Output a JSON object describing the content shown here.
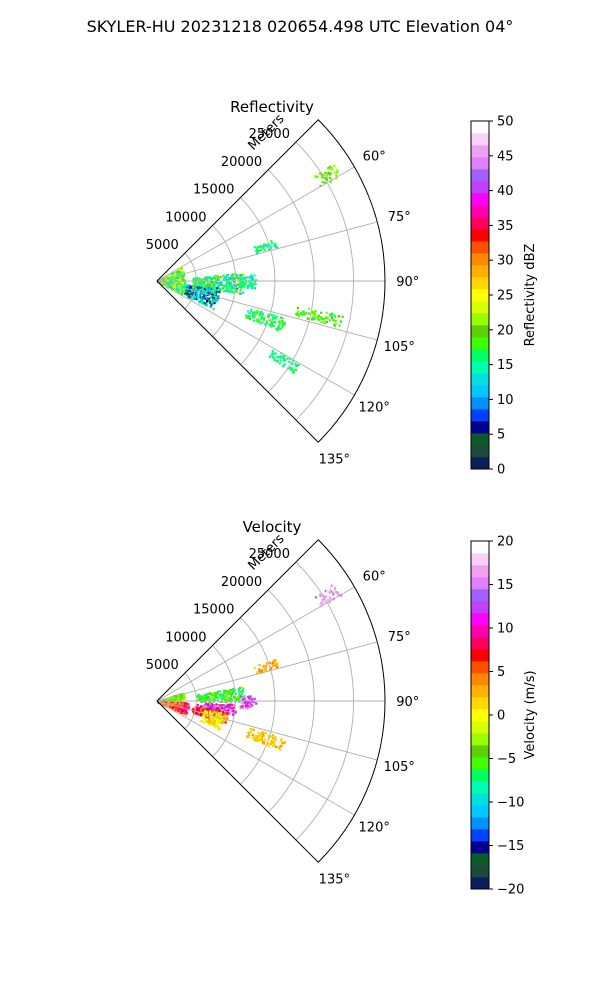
{
  "figure": {
    "suptitle": "SKYLER-HU  20231218  020654.498 UTC Elevation 04°"
  },
  "chart_data": [
    {
      "type": "polar-sector",
      "title": "Reflectivity",
      "radial_label": "Meters",
      "theta_range_deg": [
        45,
        135
      ],
      "theta_ticks_deg": [
        60,
        75,
        90,
        105,
        120,
        135
      ],
      "theta_tick_labels": [
        "60°",
        "75°",
        "90°",
        "105°",
        "120°",
        "135°"
      ],
      "r_range": [
        0,
        29000
      ],
      "r_ticks": [
        5000,
        10000,
        15000,
        20000,
        25000
      ],
      "r_tick_labels": [
        "5000",
        "10000",
        "15000",
        "20000",
        "25000"
      ],
      "grid": true,
      "colorbar": {
        "label": "Reflectivity dBZ",
        "range": [
          0,
          50
        ],
        "ticks": [
          0,
          5,
          10,
          15,
          20,
          25,
          30,
          35,
          40,
          45,
          50
        ],
        "tick_labels": [
          "0",
          "5",
          "10",
          "15",
          "20",
          "25",
          "30",
          "35",
          "40",
          "45",
          "50"
        ],
        "colors": [
          "#0a1e5a",
          "#1b4a3a",
          "#0b5a2a",
          "#000090",
          "#0040ff",
          "#0090ff",
          "#00c8ff",
          "#00e0e0",
          "#00ffb0",
          "#00ff60",
          "#40ff00",
          "#5fd000",
          "#99ff00",
          "#d8ff00",
          "#ffff00",
          "#ffd800",
          "#ffb000",
          "#ff8800",
          "#ff5000",
          "#ff0000",
          "#ff0060",
          "#ff00b0",
          "#ff00ff",
          "#c040ff",
          "#a060ff",
          "#e080ff",
          "#f0a0f0",
          "#f8d0f8",
          "#ffffff"
        ]
      },
      "echo_clusters": [
        {
          "az": [
            84,
            98
          ],
          "r": [
            4500,
            11000
          ],
          "values": [
            10,
            22
          ]
        },
        {
          "az": [
            96,
            116
          ],
          "r": [
            2000,
            8000
          ],
          "values": [
            3,
            18
          ]
        },
        {
          "az": [
            60,
            118
          ],
          "r": [
            0,
            3500
          ],
          "values": [
            12,
            26
          ]
        },
        {
          "az": [
            86,
            94
          ],
          "r": [
            10500,
            12500
          ],
          "values": [
            12,
            18
          ]
        },
        {
          "az": [
            106,
            112
          ],
          "r": [
            12000,
            17000
          ],
          "values": [
            14,
            20
          ]
        },
        {
          "az": [
            70,
            74
          ],
          "r": [
            13000,
            16000
          ],
          "values": [
            14,
            18
          ]
        },
        {
          "az": [
            56,
            60
          ],
          "r": [
            24000,
            27000
          ],
          "values": [
            18,
            22
          ]
        },
        {
          "az": [
            100,
            104
          ],
          "r": [
            18000,
            24000
          ],
          "values": [
            16,
            22
          ]
        },
        {
          "az": [
            120,
            124
          ],
          "r": [
            17000,
            21000
          ],
          "values": [
            14,
            18
          ]
        }
      ]
    },
    {
      "type": "polar-sector",
      "title": "Velocity",
      "radial_label": "Meters",
      "theta_range_deg": [
        45,
        135
      ],
      "theta_ticks_deg": [
        60,
        75,
        90,
        105,
        120,
        135
      ],
      "theta_tick_labels": [
        "60°",
        "75°",
        "90°",
        "105°",
        "120°",
        "135°"
      ],
      "r_range": [
        0,
        29000
      ],
      "r_ticks": [
        5000,
        10000,
        15000,
        20000,
        25000
      ],
      "r_tick_labels": [
        "5000",
        "10000",
        "15000",
        "20000",
        "25000"
      ],
      "grid": true,
      "colorbar": {
        "label": "Velocity (m/s)",
        "range": [
          -20,
          20
        ],
        "ticks": [
          -20,
          -15,
          -10,
          -5,
          0,
          5,
          10,
          15,
          20
        ],
        "tick_labels": [
          "−20",
          "−15",
          "−10",
          "−5",
          "0",
          "5",
          "10",
          "15",
          "20"
        ],
        "colors": [
          "#0a1e5a",
          "#1b4a3a",
          "#0b5a2a",
          "#000090",
          "#0040ff",
          "#0090ff",
          "#00c8ff",
          "#00e0e0",
          "#00ffb0",
          "#00ff60",
          "#40ff00",
          "#5fd000",
          "#99ff00",
          "#d8ff00",
          "#ffff00",
          "#ffd800",
          "#ffb000",
          "#ff8800",
          "#ff5000",
          "#ff0000",
          "#ff0060",
          "#ff00b0",
          "#ff00ff",
          "#c040ff",
          "#a060ff",
          "#e080ff",
          "#f0a0f0",
          "#f8d0f8",
          "#ffffff"
        ]
      },
      "echo_clusters": [
        {
          "az": [
            80,
            90
          ],
          "r": [
            5000,
            11000
          ],
          "values": [
            -8,
            -3
          ]
        },
        {
          "az": [
            92,
            100
          ],
          "r": [
            5000,
            10000
          ],
          "values": [
            8,
            16
          ]
        },
        {
          "az": [
            98,
            108
          ],
          "r": [
            4500,
            9000
          ],
          "values": [
            4,
            10
          ]
        },
        {
          "az": [
            70,
            90
          ],
          "r": [
            0,
            3500
          ],
          "values": [
            -6,
            -2
          ]
        },
        {
          "az": [
            92,
            116
          ],
          "r": [
            0,
            4000
          ],
          "values": [
            2,
            12
          ]
        },
        {
          "az": [
            100,
            114
          ],
          "r": [
            6000,
            9000
          ],
          "values": [
            -2,
            3
          ]
        },
        {
          "az": [
            86,
            94
          ],
          "r": [
            10500,
            12500
          ],
          "values": [
            10,
            16
          ]
        },
        {
          "az": [
            70,
            74
          ],
          "r": [
            13000,
            16000
          ],
          "values": [
            1,
            5
          ]
        },
        {
          "az": [
            56,
            60
          ],
          "r": [
            24000,
            27000
          ],
          "values": [
            14,
            18
          ]
        },
        {
          "az": [
            106,
            112
          ],
          "r": [
            12000,
            17000
          ],
          "values": [
            0,
            4
          ]
        }
      ]
    }
  ]
}
